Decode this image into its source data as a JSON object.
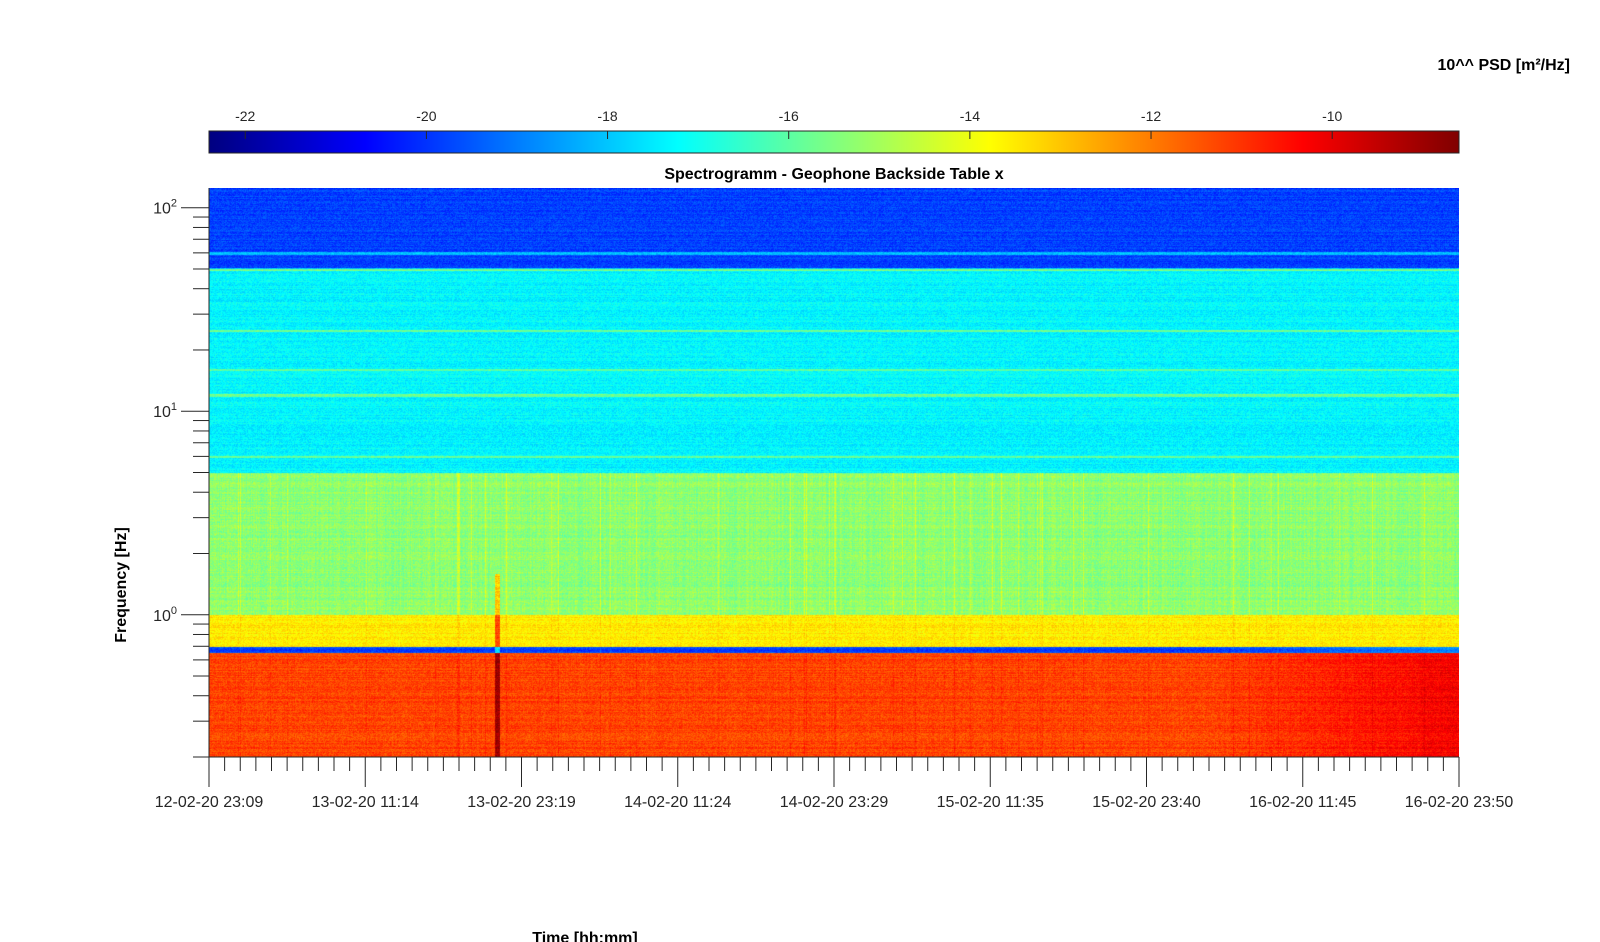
{
  "chart_data": {
    "type": "heatmap",
    "title": "Spectrogramm - Geophone Backside Table x",
    "xlabel": "Time [hh:mm]",
    "ylabel": "Frequency [Hz]",
    "x_scale": "time",
    "y_scale": "log",
    "ylim": [
      0.2,
      125
    ],
    "x_tick_labels": [
      "12-02-20 23:09",
      "13-02-20 11:14",
      "13-02-20 23:19",
      "14-02-20 11:24",
      "14-02-20 23:29",
      "15-02-20 11:35",
      "15-02-20 23:40",
      "16-02-20 11:45",
      "16-02-20 23:50"
    ],
    "y_ticks": [
      {
        "base": "10",
        "exp": "0",
        "value": 1
      },
      {
        "base": "10",
        "exp": "1",
        "value": 10
      },
      {
        "base": "10",
        "exp": "2",
        "value": 100
      }
    ],
    "colorbar": {
      "label": "10^^ PSD [m²/Hz]",
      "colormap": "jet",
      "range": [
        -22.4,
        -8.6
      ],
      "ticks": [
        "-22",
        "-20",
        "-18",
        "-16",
        "-14",
        "-12",
        "-10"
      ],
      "tick_values": [
        -22,
        -20,
        -18,
        -16,
        -14,
        -12,
        -10
      ],
      "placement": "top"
    },
    "persistent_lines_hz": [
      6,
      12,
      16,
      25,
      50,
      60
    ],
    "band_levels_log10_psd": [
      {
        "freq_range_hz": [
          0.2,
          0.65
        ],
        "level": -11.2
      },
      {
        "freq_range_hz": [
          0.7,
          1.0
        ],
        "level": -13.5
      },
      {
        "freq_range_hz": [
          1.0,
          5.0
        ],
        "level": -15.3
      },
      {
        "freq_range_hz": [
          5.0,
          50
        ],
        "level": -17.3
      },
      {
        "freq_range_hz": [
          50,
          125
        ],
        "level": -19.8
      }
    ],
    "events": [
      {
        "time": "13-02-20 ~17:00",
        "note": "broadband transient, strongest near 0.2-1.5 Hz"
      }
    ]
  }
}
